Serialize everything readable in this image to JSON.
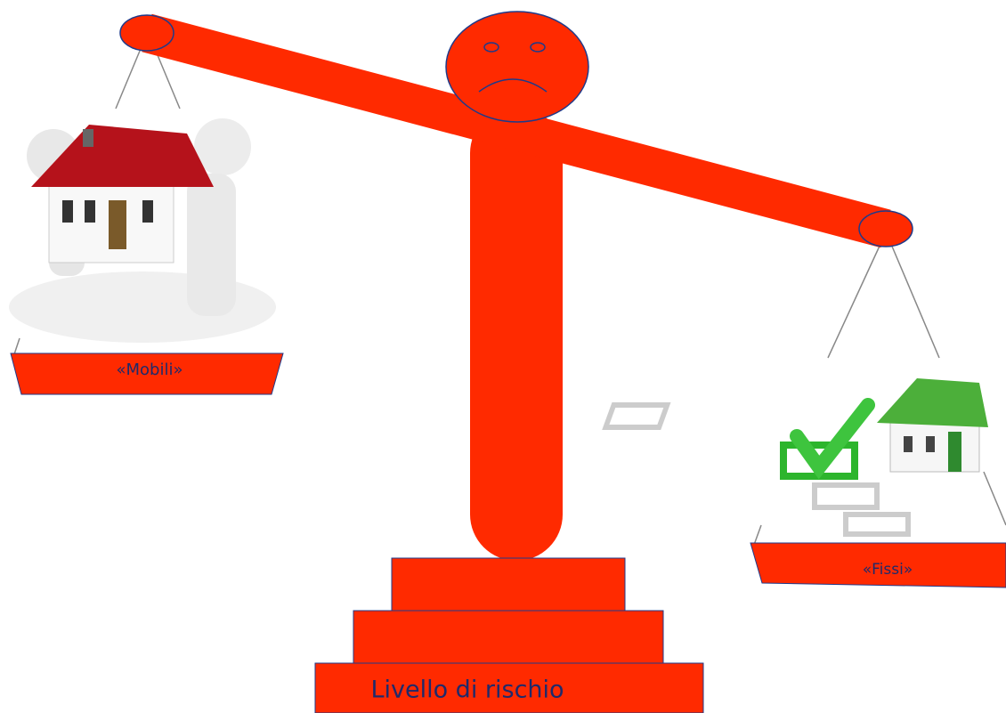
{
  "labels": {
    "left_pan": "«Mobili»",
    "right_pan": "«Fissi»",
    "base": "Livello di rischio"
  }
}
